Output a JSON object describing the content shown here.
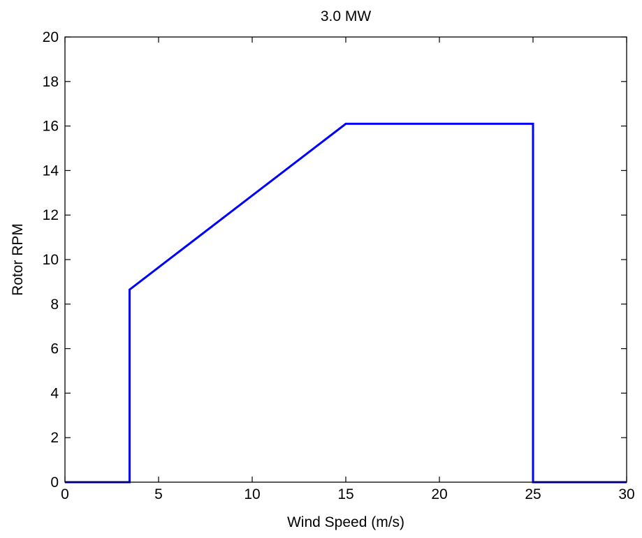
{
  "chart_data": {
    "type": "line",
    "title": "3.0 MW",
    "xlabel": "Wind Speed (m/s)",
    "ylabel": "Rotor RPM",
    "xlim": [
      0,
      30
    ],
    "ylim": [
      0,
      20
    ],
    "xticks": [
      0,
      5,
      10,
      15,
      20,
      25,
      30
    ],
    "yticks": [
      0,
      2,
      4,
      6,
      8,
      10,
      12,
      14,
      16,
      18,
      20
    ],
    "grid": false,
    "legend": "none",
    "series": [
      {
        "color": "#0000ff",
        "x": [
          0,
          3.45,
          3.45,
          15,
          25,
          25,
          30
        ],
        "y": [
          0,
          0,
          8.65,
          16.1,
          16.1,
          0,
          0
        ]
      }
    ]
  }
}
